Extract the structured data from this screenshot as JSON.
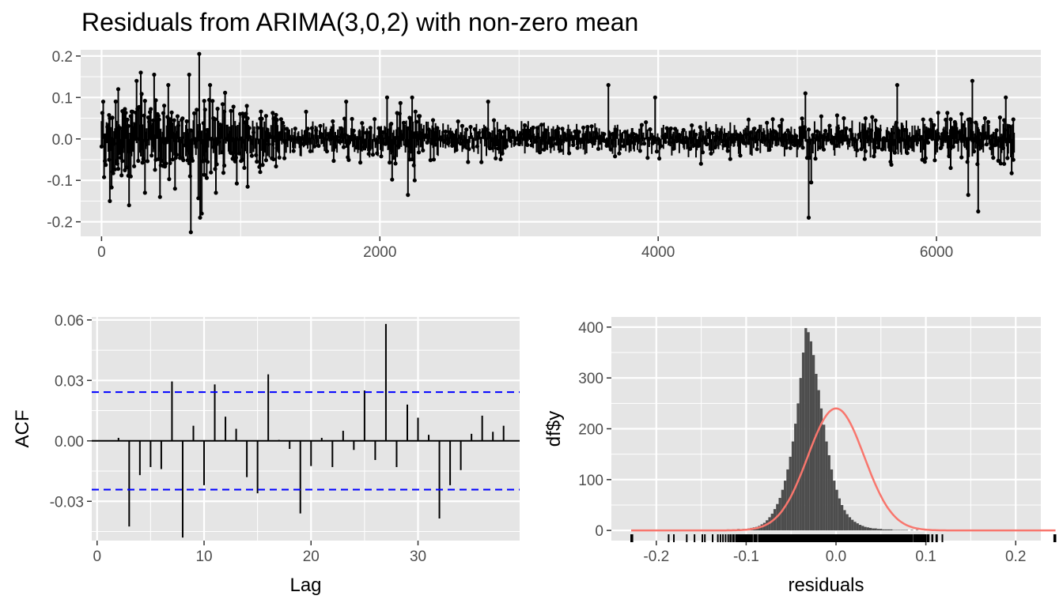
{
  "title": "Residuals from ARIMA(3,0,2) with non-zero mean",
  "colors": {
    "panel_bg": "#e5e5e5",
    "grid": "#ffffff",
    "series": "#000000",
    "ci_line": "#0000ff",
    "hist_fill": "#4d4d4d",
    "density": "#f8766d",
    "tick_text": "#4d4d4d"
  },
  "chart_data": [
    {
      "id": "residual-series",
      "type": "line",
      "title": "Residuals from ARIMA(3,0,2) with non-zero mean",
      "xlabel": "",
      "ylabel": "",
      "xlim": [
        -150,
        6750
      ],
      "ylim": [
        -0.235,
        0.215
      ],
      "x_ticks": [
        0,
        2000,
        4000,
        6000
      ],
      "x_tick_labels": [
        "0",
        "2000",
        "4000",
        "6000"
      ],
      "y_ticks": [
        -0.2,
        -0.1,
        0.0,
        0.1,
        0.2
      ],
      "y_tick_labels": [
        "-0.2",
        "-0.1",
        "0.0",
        "0.1",
        "0.2"
      ],
      "n": 6560,
      "volatility_profile": [
        {
          "x": 0,
          "sd": 0.045
        },
        {
          "x": 900,
          "sd": 0.04
        },
        {
          "x": 1400,
          "sd": 0.02
        },
        {
          "x": 2000,
          "sd": 0.02
        },
        {
          "x": 2200,
          "sd": 0.03
        },
        {
          "x": 2500,
          "sd": 0.02
        },
        {
          "x": 4000,
          "sd": 0.015
        },
        {
          "x": 5000,
          "sd": 0.018
        },
        {
          "x": 6000,
          "sd": 0.022
        },
        {
          "x": 6560,
          "sd": 0.025
        }
      ],
      "extremes": [
        {
          "x": 10,
          "y": 0.09
        },
        {
          "x": 60,
          "y": -0.15
        },
        {
          "x": 120,
          "y": 0.12
        },
        {
          "x": 200,
          "y": -0.16
        },
        {
          "x": 250,
          "y": 0.14
        },
        {
          "x": 280,
          "y": 0.16
        },
        {
          "x": 310,
          "y": -0.13
        },
        {
          "x": 380,
          "y": 0.155
        },
        {
          "x": 420,
          "y": -0.14
        },
        {
          "x": 480,
          "y": 0.13
        },
        {
          "x": 530,
          "y": -0.12
        },
        {
          "x": 630,
          "y": 0.155
        },
        {
          "x": 640,
          "y": -0.225
        },
        {
          "x": 700,
          "y": 0.205
        },
        {
          "x": 705,
          "y": -0.19
        },
        {
          "x": 720,
          "y": -0.18
        },
        {
          "x": 780,
          "y": 0.13
        },
        {
          "x": 820,
          "y": -0.13
        },
        {
          "x": 1760,
          "y": 0.09
        },
        {
          "x": 2050,
          "y": 0.1
        },
        {
          "x": 2200,
          "y": -0.135
        },
        {
          "x": 2230,
          "y": 0.1
        },
        {
          "x": 2250,
          "y": -0.1
        },
        {
          "x": 2780,
          "y": 0.09
        },
        {
          "x": 3640,
          "y": 0.13
        },
        {
          "x": 3980,
          "y": 0.1
        },
        {
          "x": 5060,
          "y": 0.11
        },
        {
          "x": 5080,
          "y": -0.19
        },
        {
          "x": 5100,
          "y": -0.105
        },
        {
          "x": 5720,
          "y": 0.13
        },
        {
          "x": 6230,
          "y": -0.135
        },
        {
          "x": 6260,
          "y": 0.14
        },
        {
          "x": 6300,
          "y": -0.175
        },
        {
          "x": 6100,
          "y": -0.07
        },
        {
          "x": 6500,
          "y": 0.1
        }
      ]
    },
    {
      "id": "acf",
      "type": "bar",
      "xlabel": "Lag",
      "ylabel": "ACF",
      "xlim": [
        -0.5,
        39.5
      ],
      "ylim": [
        -0.0495,
        0.0615
      ],
      "x_ticks": [
        0,
        10,
        20,
        30
      ],
      "x_tick_labels": [
        "0",
        "10",
        "20",
        "30"
      ],
      "y_ticks": [
        -0.03,
        0.0,
        0.03,
        0.06
      ],
      "y_tick_labels": [
        "-0.03",
        "0.00",
        "0.03",
        "0.06"
      ],
      "ci": 0.0242,
      "lags": [
        2,
        3,
        4,
        5,
        6,
        7,
        8,
        9,
        10,
        11,
        12,
        13,
        14,
        15,
        16,
        17,
        18,
        19,
        20,
        21,
        22,
        23,
        24,
        25,
        26,
        27,
        28,
        29,
        30,
        31,
        32,
        33,
        34,
        35,
        36,
        37,
        38
      ],
      "values": [
        0.0015,
        -0.0425,
        -0.017,
        -0.013,
        -0.014,
        0.0295,
        -0.048,
        0.0075,
        -0.022,
        0.028,
        0.012,
        0.006,
        -0.018,
        -0.026,
        0.033,
        0.0005,
        -0.004,
        -0.036,
        -0.0125,
        0.0015,
        -0.013,
        0.005,
        -0.0045,
        0.025,
        -0.0095,
        0.058,
        -0.013,
        0.018,
        0.0115,
        0.003,
        -0.0385,
        -0.022,
        -0.0145,
        0.0035,
        0.0125,
        0.0045,
        0.0075
      ]
    },
    {
      "id": "residual-histogram",
      "type": "bar",
      "xlabel": "residuals",
      "ylabel": "df$y",
      "xlim": [
        -0.25,
        0.228
      ],
      "ylim": [
        -20,
        420
      ],
      "x_ticks": [
        -0.2,
        -0.1,
        0.0,
        0.1,
        0.2
      ],
      "x_tick_labels": [
        "-0.2",
        "-0.1",
        "0.0",
        "0.1",
        "0.2"
      ],
      "y_ticks": [
        0,
        100,
        200,
        300,
        400
      ],
      "y_tick_labels": [
        "0",
        "100",
        "200",
        "300",
        "400"
      ],
      "bin_start": -0.228,
      "bin_width": 0.00288,
      "counts": [
        1,
        0,
        0,
        0,
        0,
        0,
        0,
        0,
        0,
        0,
        0,
        0,
        0,
        0,
        1,
        0,
        1,
        0,
        0,
        0,
        0,
        1,
        0,
        0,
        1,
        0,
        0,
        1,
        1,
        0,
        0,
        1,
        0,
        1,
        1,
        1,
        1,
        2,
        1,
        2,
        1,
        3,
        2,
        3,
        3,
        4,
        5,
        6,
        7,
        9,
        12,
        15,
        20,
        26,
        33,
        42,
        52,
        64,
        80,
        98,
        120,
        145,
        175,
        210,
        250,
        300,
        350,
        398,
        390,
        372,
        345,
        308,
        276,
        240,
        208,
        175,
        148,
        120,
        98,
        80,
        63,
        50,
        40,
        32,
        26,
        21,
        17,
        14,
        11,
        9,
        7,
        6,
        5,
        4,
        4,
        3,
        3,
        2,
        2,
        2,
        2,
        1,
        1,
        1,
        1,
        1,
        1,
        0,
        1,
        0,
        1,
        0,
        0,
        1,
        0,
        0,
        1,
        0,
        0,
        0,
        0,
        0,
        0,
        0,
        0,
        0,
        0,
        0,
        0,
        0,
        0,
        0,
        0,
        0,
        0,
        0,
        0,
        0,
        0,
        0,
        0,
        0,
        0,
        0,
        0,
        0,
        0,
        0,
        0,
        0,
        0,
        0,
        0,
        0,
        0,
        0,
        0,
        0,
        0,
        0,
        0,
        0,
        0,
        1
      ],
      "density": {
        "mean": 0.0,
        "sd": 0.0314,
        "n": 6560
      },
      "rug": true
    }
  ]
}
